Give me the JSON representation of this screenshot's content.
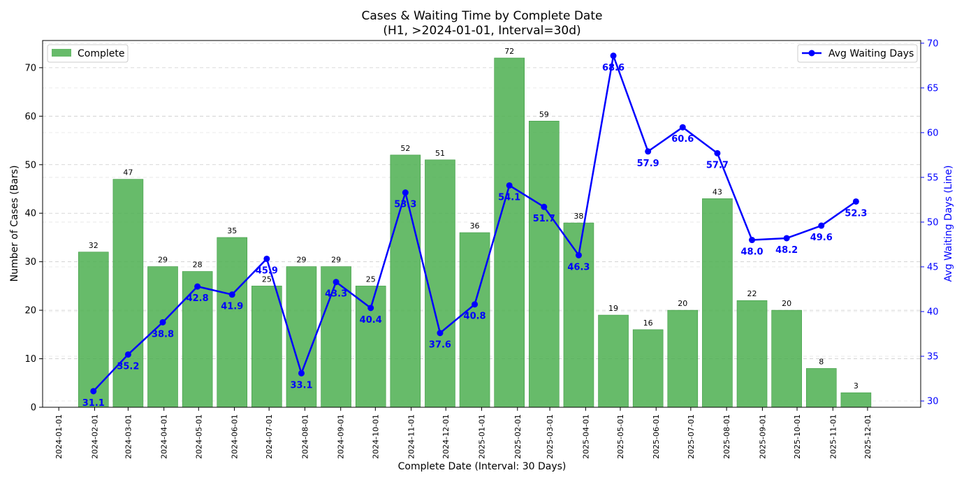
{
  "chart_data": {
    "type": "bar+line",
    "title": "Cases & Waiting Time by Complete Date",
    "subtitle": "(H1, >2024-01-01, Interval=30d)",
    "xlabel": "Complete Date (Interval: 30 Days)",
    "ylabel_left": "Number of Cases (Bars)",
    "ylabel_right": "Avg Waiting Days (Line)",
    "ylim_left": [
      0,
      75.6
    ],
    "ylim_right": [
      29.3,
      70.3
    ],
    "yticks_left": [
      0,
      10,
      20,
      30,
      40,
      50,
      60,
      70
    ],
    "yticks_right": [
      30,
      35,
      40,
      45,
      50,
      55,
      60,
      65,
      70
    ],
    "x_tick_dates": [
      "2024-01-01",
      "2024-02-01",
      "2024-03-01",
      "2024-04-01",
      "2024-05-01",
      "2024-06-01",
      "2024-07-01",
      "2024-08-01",
      "2024-09-01",
      "2024-10-01",
      "2024-11-01",
      "2024-12-01",
      "2025-01-01",
      "2025-02-01",
      "2025-03-01",
      "2025-04-01",
      "2025-05-01",
      "2025-06-01",
      "2025-07-01",
      "2025-08-01",
      "2025-09-01",
      "2025-10-01",
      "2025-11-01",
      "2025-12-01"
    ],
    "x_range": [
      "2023-12-18",
      "2026-01-16"
    ],
    "grid": true,
    "bar_series": {
      "name": "Complete",
      "color": "#4CAF50",
      "dates": [
        "2024-01-31",
        "2024-03-01",
        "2024-03-31",
        "2024-04-30",
        "2024-05-30",
        "2024-06-29",
        "2024-07-29",
        "2024-08-28",
        "2024-09-27",
        "2024-10-27",
        "2024-11-26",
        "2024-12-26",
        "2025-01-25",
        "2025-02-24",
        "2025-03-26",
        "2025-04-25",
        "2025-05-25",
        "2025-06-24",
        "2025-07-24",
        "2025-08-23",
        "2025-09-22",
        "2025-10-22",
        "2025-11-21"
      ],
      "values": [
        32,
        47,
        29,
        28,
        35,
        25,
        29,
        29,
        25,
        52,
        51,
        36,
        72,
        59,
        38,
        19,
        16,
        20,
        43,
        22,
        20,
        8,
        3
      ]
    },
    "line_series": {
      "name": "Avg Waiting Days",
      "color": "#0000ff",
      "dates": [
        "2024-01-31",
        "2024-03-01",
        "2024-03-31",
        "2024-04-30",
        "2024-05-30",
        "2024-06-29",
        "2024-07-29",
        "2024-08-28",
        "2024-09-27",
        "2024-10-27",
        "2024-11-26",
        "2024-12-26",
        "2025-01-25",
        "2025-02-24",
        "2025-03-26",
        "2025-04-25",
        "2025-05-25",
        "2025-06-24",
        "2025-07-24",
        "2025-08-23",
        "2025-09-22",
        "2025-10-22",
        "2025-11-21"
      ],
      "values": [
        31.1,
        35.2,
        38.8,
        42.8,
        41.9,
        45.9,
        33.1,
        43.3,
        40.4,
        53.3,
        37.6,
        40.8,
        54.1,
        51.7,
        46.3,
        68.6,
        57.9,
        60.6,
        57.7,
        48.0,
        48.2,
        49.6,
        52.3
      ],
      "labels": [
        "31.1",
        "35.2",
        "38.8",
        "42.8",
        "41.9",
        "45.9",
        "33.1",
        "43.3",
        "40.4",
        "53.3",
        "37.6",
        "40.8",
        "54.1",
        "51.7",
        "46.3",
        "68.6",
        "57.9",
        "60.6",
        "57.7",
        "48.0",
        "48.2",
        "49.6",
        "52.3"
      ]
    },
    "legend_left": {
      "label": "Complete",
      "position": "upper-left"
    },
    "legend_right": {
      "label": "Avg Waiting Days",
      "position": "upper-right"
    }
  }
}
